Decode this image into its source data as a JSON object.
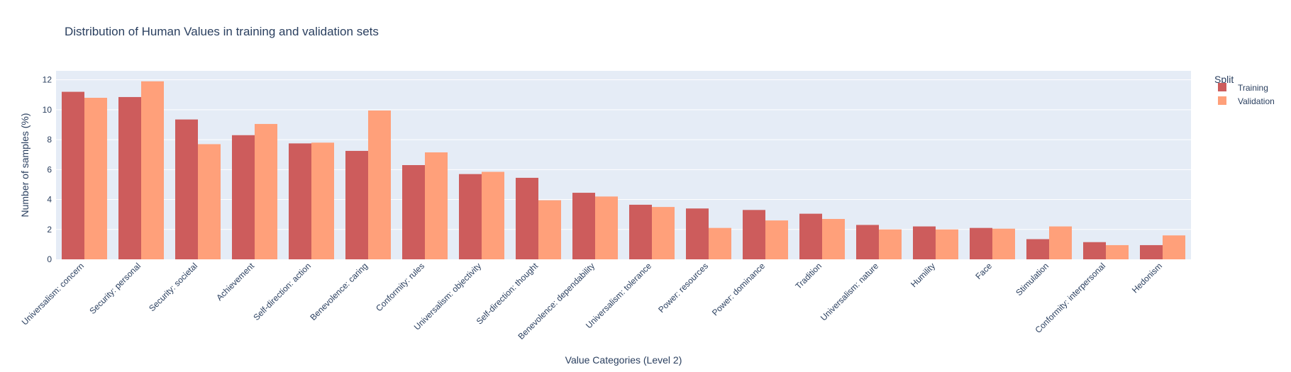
{
  "chart_data": {
    "type": "bar",
    "title": "Distribution of Human Values in training and validation sets",
    "xlabel": "Value Categories (Level 2)",
    "ylabel": "Number of samples (%)",
    "ylim": [
      0,
      12.6
    ],
    "yticks": [
      0,
      2,
      4,
      6,
      8,
      10,
      12
    ],
    "grid": true,
    "legend_placement": "right",
    "legend_title": "Split",
    "categories": [
      "Universalism: concern",
      "Security: personal",
      "Security: societal",
      "Achievement",
      "Self-direction: action",
      "Benevolence: caring",
      "Conformity: rules",
      "Universalism: objectivity",
      "Self-direction: thought",
      "Benevolence: dependability",
      "Universalism: tolerance",
      "Power: resources",
      "Power: dominance",
      "Tradition",
      "Universalism: nature",
      "Humility",
      "Face",
      "Stimulation",
      "Conformity: interpersonal",
      "Hedonism"
    ],
    "series": [
      {
        "name": "Training",
        "color": "#cd5c5c",
        "values": [
          11.2,
          10.85,
          9.35,
          8.3,
          7.75,
          7.25,
          6.3,
          5.7,
          5.45,
          4.45,
          3.65,
          3.4,
          3.3,
          3.05,
          2.3,
          2.2,
          2.1,
          1.35,
          1.15,
          0.95
        ]
      },
      {
        "name": "Validation",
        "color": "#ffa07a",
        "values": [
          10.8,
          11.9,
          7.7,
          9.05,
          7.8,
          9.95,
          7.15,
          5.85,
          3.95,
          4.2,
          3.5,
          2.1,
          2.6,
          2.7,
          2.0,
          2.0,
          2.05,
          2.2,
          0.95,
          1.6
        ]
      }
    ]
  }
}
